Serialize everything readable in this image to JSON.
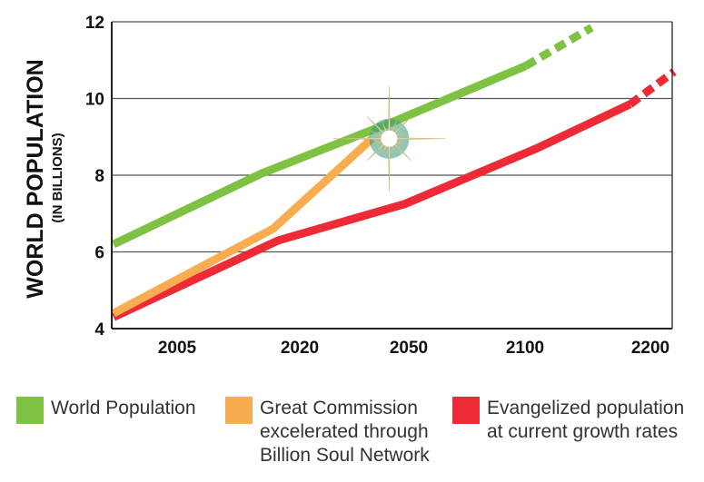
{
  "chart_data": {
    "type": "line",
    "ylabel": "WORLD POPULATION",
    "ylabel_sub": "(IN BILLIONS)",
    "categories": [
      "2005",
      "2020",
      "2050",
      "2100",
      "2200"
    ],
    "ylim": [
      4,
      12
    ],
    "yticks": [
      "4",
      "6",
      "8",
      "10",
      "12"
    ],
    "grid": true,
    "legend_position": "bottom",
    "series": [
      {
        "name": "World Population",
        "color": "#7dc242",
        "points": [
          [
            0,
            6.2
          ],
          [
            1.35,
            8.05
          ],
          [
            2.55,
            9.4
          ],
          [
            3.75,
            10.85
          ]
        ],
        "projection": [
          [
            3.75,
            10.85
          ],
          [
            4.35,
            11.85
          ]
        ]
      },
      {
        "name": "Great Commission excelerated through Billion Soul Network",
        "color": "#f9ad51",
        "points": [
          [
            0,
            4.4
          ],
          [
            1.45,
            6.6
          ],
          [
            2.35,
            8.95
          ]
        ]
      },
      {
        "name": "Evangelized population at current growth rates",
        "color": "#ee2a36",
        "points": [
          [
            0,
            4.3
          ],
          [
            1.5,
            6.3
          ],
          [
            2.65,
            7.25
          ],
          [
            3.85,
            8.7
          ],
          [
            4.7,
            9.85
          ]
        ],
        "projection": [
          [
            4.7,
            9.85
          ],
          [
            5.1,
            10.7
          ]
        ]
      }
    ],
    "highlight": {
      "x": 2.4,
      "y": 9.0,
      "label": "star-burst"
    }
  },
  "legend": [
    {
      "label": "World Population",
      "color": "#7dc242"
    },
    {
      "label": "Great Commission\nexcelerated through\nBillion Soul Network",
      "color": "#f9ad51"
    },
    {
      "label": "Evangelized population\nat current growth rates",
      "color": "#ee2a36"
    }
  ]
}
